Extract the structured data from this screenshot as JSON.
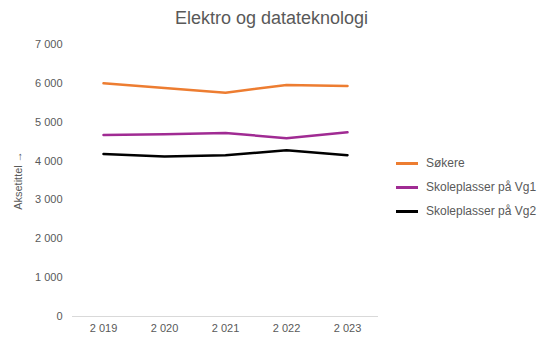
{
  "chart_data": {
    "type": "line",
    "title": "Elektro og datateknologi",
    "y_label": "Aksetittel",
    "categories": [
      "2 019",
      "2 020",
      "2 021",
      "2 022",
      "2 023"
    ],
    "series": [
      {
        "name": "Søkere",
        "color": "#ED7D31",
        "values": [
          6000,
          5880,
          5760,
          5960,
          5930
        ]
      },
      {
        "name": "Skoleplasser på Vg1",
        "color": "#A02B93",
        "values": [
          4670,
          4690,
          4720,
          4590,
          4740
        ]
      },
      {
        "name": "Skoleplasser på Vg2",
        "color": "#000000",
        "values": [
          4180,
          4120,
          4150,
          4280,
          4150
        ]
      }
    ],
    "ylim": [
      0,
      7000
    ],
    "yticks": [
      0,
      {
        "value": 1000,
        "label": "1 000"
      },
      {
        "value": 2000,
        "label": "2 000"
      },
      {
        "value": 3000,
        "label": "3 000"
      },
      {
        "value": 4000,
        "label": "4 000"
      },
      {
        "value": 5000,
        "label": "5 000"
      },
      {
        "value": 6000,
        "label": "6 000"
      },
      {
        "value": 7000,
        "label": "7 000"
      }
    ],
    "grid": false,
    "legend": "right"
  }
}
